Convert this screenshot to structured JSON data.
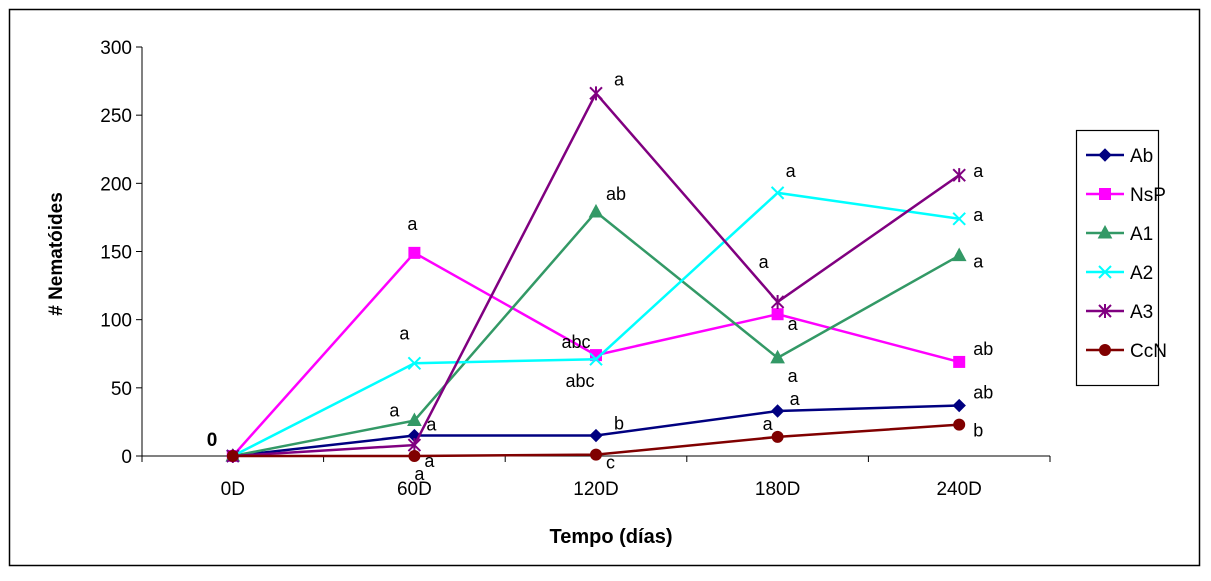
{
  "chart_data": {
    "type": "line",
    "title": "",
    "xlabel": "Tempo (días)",
    "ylabel": "# Nematóides",
    "categories": [
      "0D",
      "60D",
      "120D",
      "180D",
      "240D"
    ],
    "ylim": [
      0,
      300
    ],
    "yticks": [
      "0",
      "50",
      "100",
      "150",
      "200",
      "250",
      "300"
    ],
    "grid": false,
    "legend_position": "right",
    "zero_label": "0",
    "series": [
      {
        "name": "Ab",
        "color": "#000080",
        "marker": "diamond",
        "values": [
          0,
          15,
          15,
          33,
          37
        ],
        "annotations": [
          "",
          "a",
          "b",
          "a",
          "ab"
        ]
      },
      {
        "name": "NsP",
        "color": "#ff00ff",
        "marker": "square",
        "values": [
          0,
          149,
          74,
          104,
          69
        ],
        "annotations": [
          "",
          "a",
          "abc",
          "a",
          "ab"
        ]
      },
      {
        "name": "A1",
        "color": "#339966",
        "marker": "triangle",
        "values": [
          0,
          26,
          179,
          72,
          147
        ],
        "annotations": [
          "",
          "a",
          "ab",
          "a",
          "a"
        ]
      },
      {
        "name": "A2",
        "color": "#00ffff",
        "marker": "x",
        "values": [
          0,
          68,
          71,
          193,
          174
        ],
        "annotations": [
          "",
          "a",
          "abc",
          "a",
          "a"
        ]
      },
      {
        "name": "A3",
        "color": "#800080",
        "marker": "star",
        "values": [
          0,
          8,
          266,
          113,
          206
        ],
        "annotations": [
          "",
          "a",
          "a",
          "a",
          "a"
        ]
      },
      {
        "name": "CcN",
        "color": "#800000",
        "marker": "circle",
        "values": [
          0,
          0,
          1,
          14,
          23
        ],
        "annotations": [
          "",
          "a",
          "c",
          "a",
          "b"
        ]
      }
    ]
  }
}
